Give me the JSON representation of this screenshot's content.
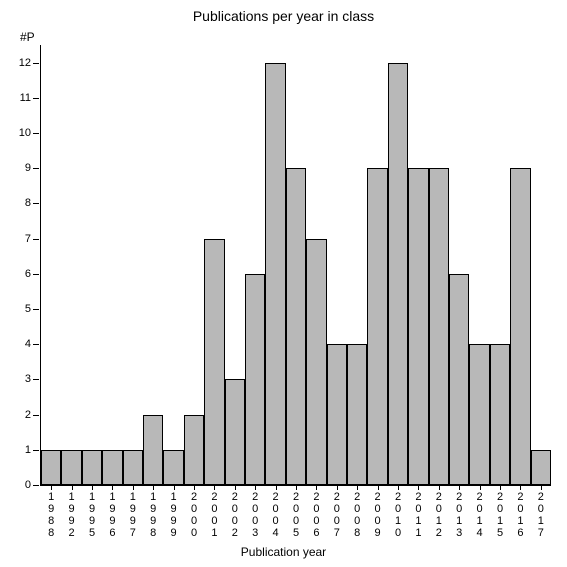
{
  "chart": {
    "type": "bar",
    "title": "Publications per year in class",
    "title_fontsize": 14,
    "xlabel": "Publication year",
    "ylabel_short": "#P",
    "label_fontsize": 12,
    "tick_fontsize": 11,
    "background_color": "#ffffff",
    "bar_color": "#b8b8b8",
    "bar_border_color": "#000000",
    "axis_color": "#000000",
    "text_color": "#000000",
    "ylim": [
      0,
      12.5
    ],
    "yticks": [
      0,
      1,
      2,
      3,
      4,
      5,
      6,
      7,
      8,
      9,
      10,
      11,
      12
    ],
    "bar_width": 1.0,
    "categories": [
      "1988",
      "1992",
      "1995",
      "1996",
      "1997",
      "1998",
      "1999",
      "2000",
      "2001",
      "2002",
      "2003",
      "2004",
      "2005",
      "2006",
      "2007",
      "2008",
      "2009",
      "2010",
      "2011",
      "2012",
      "2013",
      "2014",
      "2015",
      "2016",
      "2017"
    ],
    "values": [
      1,
      1,
      1,
      1,
      1,
      2,
      1,
      2,
      7,
      3,
      6,
      12,
      9,
      7,
      4,
      4,
      9,
      12,
      9,
      9,
      6,
      4,
      4,
      9,
      1
    ]
  }
}
